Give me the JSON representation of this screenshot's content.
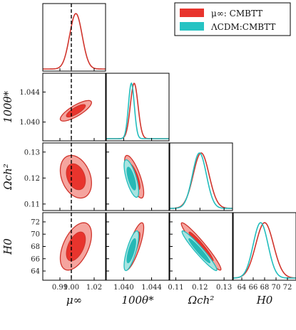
{
  "chart_data": {
    "type": "triangle",
    "legend": {
      "placement": "top-right",
      "entries": [
        {
          "label": "μ∞: CMBTT",
          "color": "#e8342d"
        },
        {
          "label": "ΛCDM:CMBTT",
          "color": "#26c3c3"
        }
      ]
    },
    "colors": {
      "red_fill_outer": "#f5a49e",
      "red_fill_inner": "#e8342d",
      "red_line": "#d0342c",
      "teal_fill_outer": "#a8e3e0",
      "teal_fill_inner": "#26b8b5",
      "teal_line": "#22bdbd"
    },
    "reference_line": {
      "parameter": "mu_inf",
      "value": 1.0,
      "style": "dashed"
    },
    "parameters": [
      {
        "key": "mu_inf",
        "label": "μ∞",
        "range": [
          0.975,
          1.03
        ],
        "ticks": [
          0.99,
          1.0,
          1.02
        ],
        "tick_labels": [
          "0.99",
          "1.00",
          "1.02"
        ]
      },
      {
        "key": "theta",
        "label": "100θ*",
        "range": [
          1.0375,
          1.0465
        ],
        "ticks": [
          1.04,
          1.044
        ],
        "tick_labels": [
          "1.040",
          "1.044"
        ]
      },
      {
        "key": "omch2",
        "label": "Ωch²",
        "range": [
          0.1075,
          0.1335
        ],
        "ticks": [
          0.11,
          0.12,
          0.13
        ],
        "tick_labels": [
          "0.11",
          "0.12",
          "0.13"
        ]
      },
      {
        "key": "H0",
        "label": "H0",
        "range": [
          62.5,
          73.5
        ],
        "ticks": [
          64,
          66,
          68,
          70,
          72
        ],
        "tick_labels": [
          "64",
          "66",
          "68",
          "70",
          "72"
        ]
      }
    ],
    "series": [
      {
        "name": "μ∞: CMBTT",
        "color": "red",
        "mean": {
          "mu_inf": 1.004,
          "theta": 1.0415,
          "omch2": 0.1205,
          "H0": 68.0
        },
        "sigma": {
          "mu_inf": 0.0055,
          "theta": 0.00055,
          "omch2": 0.0033,
          "H0": 1.55
        },
        "corr": {
          "mu_inf|theta": 0.8,
          "mu_inf|omch2": -0.3,
          "mu_inf|H0": 0.5,
          "theta|omch2": -0.75,
          "theta|H0": 0.8,
          "omch2|H0": -0.96
        }
      },
      {
        "name": "ΛCDM:CMBTT",
        "color": "teal",
        "mean": {
          "theta": 1.0411,
          "omch2": 0.1198,
          "H0": 67.3
        },
        "sigma": {
          "theta": 0.00042,
          "omch2": 0.0029,
          "H0": 1.3
        },
        "corr": {
          "theta|omch2": -0.7,
          "theta|H0": 0.75,
          "omch2|H0": -0.96
        }
      }
    ]
  }
}
